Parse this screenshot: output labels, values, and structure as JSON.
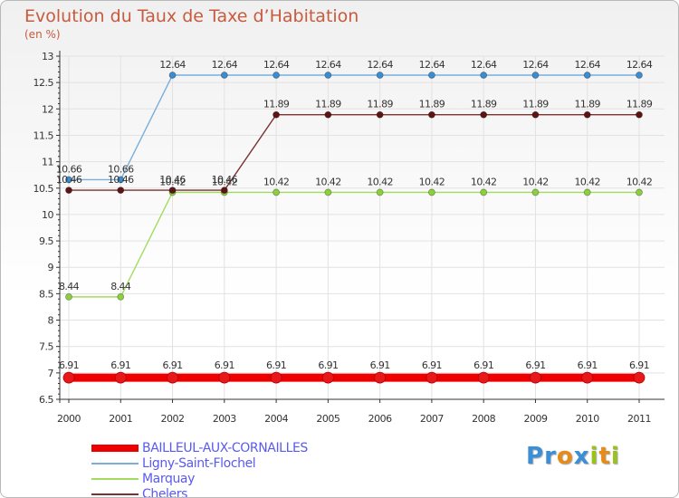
{
  "header": {
    "title": "Evolution du Taux de Taxe d’Habitation",
    "unit": "(en %)"
  },
  "brand": {
    "letters": [
      {
        "ch": "P",
        "color": "#3a8fd6"
      },
      {
        "ch": "r",
        "color": "#3a8fd6"
      },
      {
        "ch": "o",
        "color": "#e88a1a"
      },
      {
        "ch": "x",
        "color": "#3a8fd6"
      },
      {
        "ch": "i",
        "color": "#9ac21d"
      },
      {
        "ch": "t",
        "color": "#e88a1a"
      },
      {
        "ch": "i",
        "color": "#9ac21d"
      }
    ]
  },
  "chart_data": {
    "type": "line",
    "title": "Evolution du Taux de Taxe d’Habitation",
    "ylabel": "(en %)",
    "xlabel": "",
    "x": [
      "2000",
      "2001",
      "2002",
      "2003",
      "2004",
      "2005",
      "2006",
      "2007",
      "2008",
      "2009",
      "2010",
      "2011"
    ],
    "ylim": [
      6.5,
      13
    ],
    "yticks": [
      "6.5",
      "7",
      "7.5",
      "8",
      "8.5",
      "9",
      "9.5",
      "10",
      "10.5",
      "11",
      "11.5",
      "12",
      "12.5",
      "13"
    ],
    "grid": true,
    "legend_position": "bottom-left",
    "series": [
      {
        "name": "BAILLEUL-AUX-CORNAILLES",
        "color": "#ee0000",
        "marker_color": "#e8181a",
        "emphasis": true,
        "values": [
          6.91,
          6.91,
          6.91,
          6.91,
          6.91,
          6.91,
          6.91,
          6.91,
          6.91,
          6.91,
          6.91,
          6.91
        ],
        "labels": [
          "6.91",
          "6.91",
          "6.91",
          "6.91",
          "6.91",
          "6.91",
          "6.91",
          "6.91",
          "6.91",
          "6.91",
          "6.91",
          "6.91"
        ]
      },
      {
        "name": "Ligny-Saint-Flochel",
        "color": "#79aedb",
        "marker_color": "#3c8dd0",
        "values": [
          10.66,
          10.66,
          12.64,
          12.64,
          12.64,
          12.64,
          12.64,
          12.64,
          12.64,
          12.64,
          12.64,
          12.64
        ],
        "labels": [
          "10.66",
          "10.66",
          "12.64",
          "12.64",
          "12.64",
          "12.64",
          "12.64",
          "12.64",
          "12.64",
          "12.64",
          "12.64",
          "12.64"
        ]
      },
      {
        "name": "Marquay",
        "color": "#a2dc5e",
        "marker_color": "#8bd13c",
        "values": [
          8.44,
          8.44,
          10.42,
          10.42,
          10.42,
          10.42,
          10.42,
          10.42,
          10.42,
          10.42,
          10.42,
          10.42
        ],
        "labels": [
          "8.44",
          "8.44",
          "10.42",
          "10.42",
          "10.42",
          "10.42",
          "10.42",
          "10.42",
          "10.42",
          "10.42",
          "10.42",
          "10.42"
        ]
      },
      {
        "name": "Chelers",
        "color": "#7a3232",
        "marker_color": "#5e1414",
        "values": [
          10.46,
          10.46,
          10.46,
          10.46,
          11.89,
          11.89,
          11.89,
          11.89,
          11.89,
          11.89,
          11.89,
          11.89
        ],
        "labels": [
          "10.46",
          "10.46",
          "10.46",
          "10.46",
          "11.89",
          "11.89",
          "11.89",
          "11.89",
          "11.89",
          "11.89",
          "11.89",
          "11.89"
        ]
      }
    ]
  }
}
